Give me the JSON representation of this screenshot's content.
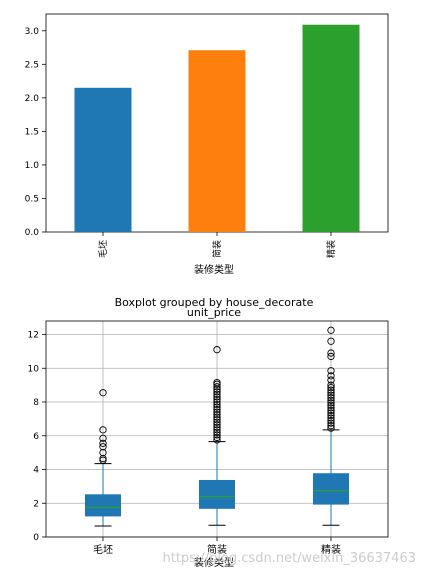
{
  "chart_data": [
    {
      "type": "bar",
      "categories": [
        "毛坯",
        "简装",
        "精装"
      ],
      "values": [
        2.15,
        2.71,
        3.09
      ],
      "colors": [
        "#1f77b4",
        "#ff7f0e",
        "#2ca02c"
      ],
      "xlabel": "装修类型",
      "ylabel": "",
      "ylim": [
        0,
        3.25
      ],
      "yticks": [
        "0.0",
        "0.5",
        "1.0",
        "1.5",
        "2.0",
        "2.5",
        "3.0"
      ],
      "grid": false
    },
    {
      "type": "boxplot",
      "title": "Boxplot grouped by house_decorate",
      "subtitle": "unit_price",
      "categories": [
        "毛坯",
        "简装",
        "精装"
      ],
      "xlabel": "装修类型",
      "ylim": [
        0,
        12.8
      ],
      "yticks": [
        "0",
        "2",
        "4",
        "6",
        "8",
        "10",
        "12"
      ],
      "grid": true,
      "box_color": "#1f77b4",
      "median_color": "#2ca02c",
      "boxes": [
        {
          "whislo": 0.65,
          "q1": 1.25,
          "med": 1.75,
          "q3": 2.5,
          "whishi": 4.35,
          "fliers": [
            4.55,
            4.65,
            5.0,
            5.35,
            5.55,
            5.85,
            6.35,
            8.55
          ]
        },
        {
          "whislo": 0.7,
          "q1": 1.7,
          "med": 2.4,
          "q3": 3.35,
          "whishi": 5.65,
          "fliers": [
            5.75,
            5.9,
            6.05,
            6.2,
            6.35,
            6.5,
            6.65,
            6.8,
            6.95,
            7.1,
            7.25,
            7.4,
            7.55,
            7.7,
            7.85,
            8.0,
            8.15,
            8.3,
            8.45,
            8.6,
            8.75,
            8.9,
            9.05,
            9.15,
            11.1
          ]
        },
        {
          "whislo": 0.7,
          "q1": 1.95,
          "med": 2.75,
          "q3": 3.75,
          "whishi": 6.35,
          "fliers": [
            6.45,
            6.6,
            6.75,
            6.9,
            7.05,
            7.2,
            7.35,
            7.5,
            7.65,
            7.8,
            7.95,
            8.1,
            8.25,
            8.4,
            8.55,
            8.7,
            8.85,
            9.0,
            9.3,
            9.55,
            9.85,
            10.7,
            10.9,
            11.6,
            12.25
          ]
        }
      ]
    }
  ],
  "watermark": "https://blog.csdn.net/weixin_36637463"
}
